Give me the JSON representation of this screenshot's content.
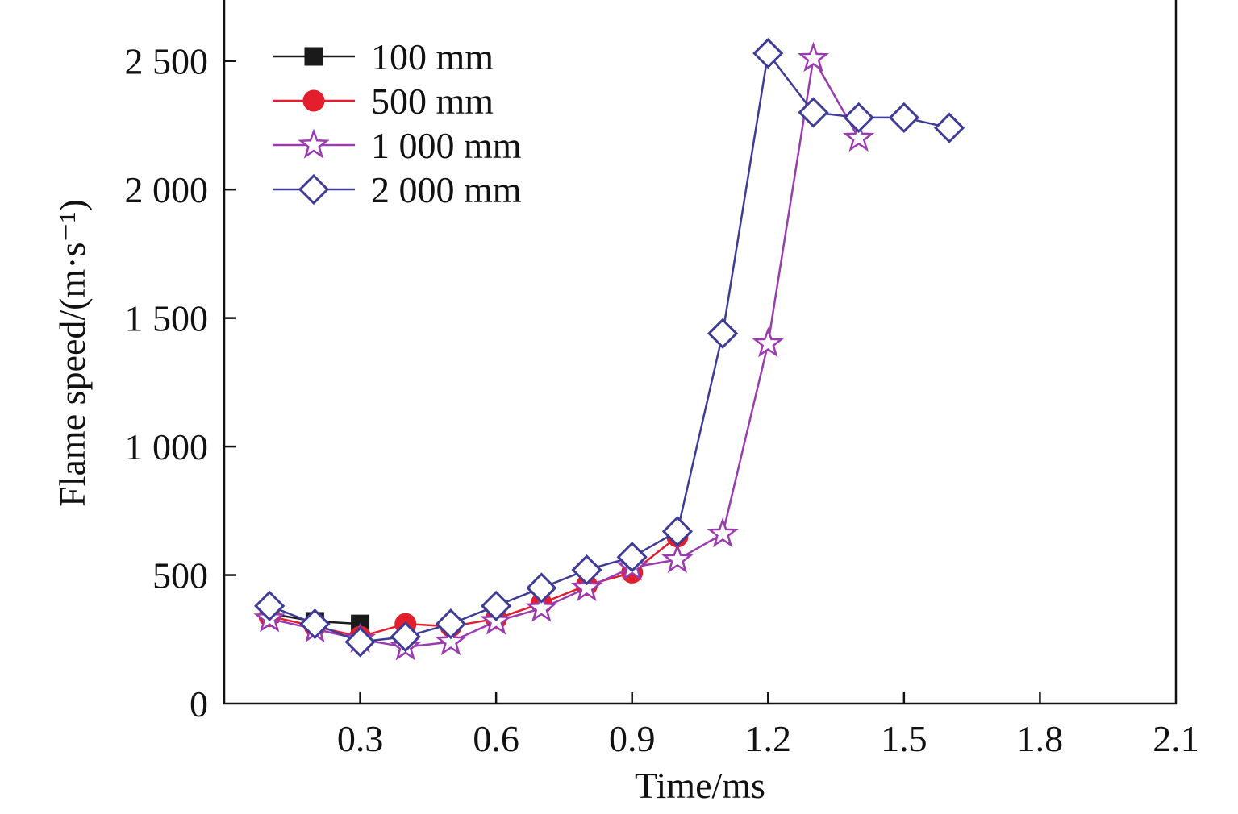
{
  "chart_data": {
    "type": "line",
    "xlabel": "Time/ms",
    "ylabel": "Flame speed/(m·s⁻¹)",
    "xlim": [
      0,
      2.1
    ],
    "ylim": [
      0,
      2750
    ],
    "xticks": [
      0.3,
      0.6,
      0.9,
      1.2,
      1.5,
      1.8,
      2.1
    ],
    "xtick_labels": [
      "0.3",
      "0.6",
      "0.9",
      "1.2",
      "1.5",
      "1.8",
      "2.1"
    ],
    "yticks": [
      0,
      500,
      1000,
      1500,
      2000,
      2500
    ],
    "ytick_labels": [
      "0",
      "500",
      "1 000",
      "1 500",
      "2 000",
      "2 500"
    ],
    "legend_position": "top-left",
    "series": [
      {
        "name": "100 mm",
        "color": "#1a1a1a",
        "marker": "square",
        "x": [
          0.1,
          0.2,
          0.3
        ],
        "y": [
          350,
          320,
          310
        ]
      },
      {
        "name": "500 mm",
        "color": "#e31e2d",
        "marker": "circle",
        "x": [
          0.1,
          0.2,
          0.3,
          0.4,
          0.5,
          0.6,
          0.7,
          0.8,
          0.9,
          1.0
        ],
        "y": [
          340,
          300,
          260,
          310,
          300,
          330,
          390,
          460,
          510,
          650
        ]
      },
      {
        "name": "1 000 mm",
        "color": "#9b3bb0",
        "marker": "star",
        "x": [
          0.1,
          0.2,
          0.3,
          0.4,
          0.5,
          0.6,
          0.7,
          0.8,
          0.9,
          1.0,
          1.1,
          1.2,
          1.3,
          1.4
        ],
        "y": [
          330,
          290,
          250,
          220,
          240,
          320,
          370,
          450,
          530,
          560,
          660,
          1400,
          2510,
          2200
        ]
      },
      {
        "name": "2 000 mm",
        "color": "#3f3c96",
        "marker": "diamond",
        "x": [
          0.1,
          0.2,
          0.3,
          0.4,
          0.5,
          0.6,
          0.7,
          0.8,
          0.9,
          1.0,
          1.1,
          1.2,
          1.3,
          1.4,
          1.5,
          1.6
        ],
        "y": [
          380,
          310,
          240,
          260,
          310,
          380,
          450,
          520,
          570,
          670,
          1440,
          2530,
          2300,
          2280,
          2280,
          2240
        ]
      }
    ]
  }
}
